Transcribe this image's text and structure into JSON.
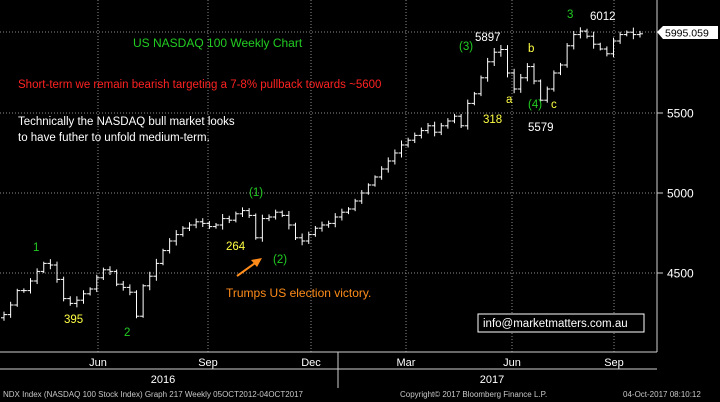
{
  "chart_data": {
    "type": "ohlc",
    "title": "US NASDAQ 100 Weekly Chart",
    "subtitle": "Short-term we remain bearish targeting a 7-8% pullback towards ~5600",
    "commentary": [
      "Technically the NASDAQ bull market looks",
      "to have futher to unfold medium-term."
    ],
    "last_price_label": "5995.059",
    "x_tick_labels": [
      "Jun",
      "Sep",
      "Dec",
      "Mar",
      "Jun",
      "Sep"
    ],
    "year_labels": [
      "2016",
      "2017"
    ],
    "y_ticks": [
      4500,
      5000,
      5500
    ],
    "ylim": [
      4100,
      6150
    ],
    "grid": true,
    "weekly_close": [
      4240,
      4300,
      4390,
      4390,
      4450,
      4510,
      4560,
      4550,
      4460,
      4340,
      4310,
      4330,
      4370,
      4400,
      4470,
      4520,
      4510,
      4430,
      4410,
      4380,
      4230,
      4420,
      4480,
      4560,
      4640,
      4700,
      4740,
      4780,
      4800,
      4820,
      4810,
      4790,
      4800,
      4840,
      4830,
      4870,
      4890,
      4860,
      4720,
      4840,
      4850,
      4880,
      4860,
      4800,
      4720,
      4700,
      4740,
      4780,
      4800,
      4810,
      4850,
      4880,
      4900,
      4950,
      5000,
      5050,
      5100,
      5150,
      5200,
      5250,
      5300,
      5330,
      5360,
      5390,
      5420,
      5380,
      5420,
      5450,
      5480,
      5420,
      5560,
      5620,
      5720,
      5820,
      5880,
      5897,
      5750,
      5650,
      5720,
      5790,
      5700,
      5580,
      5650,
      5750,
      5800,
      5920,
      5990,
      6012,
      5980,
      5930,
      5900,
      5870,
      5950,
      5990,
      6005,
      5990,
      5995
    ],
    "annotations": [
      {
        "text": "1",
        "color": "#22cc22"
      },
      {
        "text": "395",
        "color": "#ffff44"
      },
      {
        "text": "2",
        "color": "#22cc22"
      },
      {
        "text": "264",
        "color": "#ffff44"
      },
      {
        "text": "(1)",
        "color": "#22cc22"
      },
      {
        "text": "(2)",
        "color": "#22cc22"
      },
      {
        "text": "(3)",
        "color": "#22cc22"
      },
      {
        "text": "5897",
        "color": "#ffffff"
      },
      {
        "text": "a",
        "color": "#ffff44"
      },
      {
        "text": "b",
        "color": "#ffff44"
      },
      {
        "text": "318",
        "color": "#ffff44"
      },
      {
        "text": "(4)",
        "color": "#22cc22"
      },
      {
        "text": "c",
        "color": "#ffff44"
      },
      {
        "text": "5579",
        "color": "#ffffff"
      },
      {
        "text": "3",
        "color": "#22cc22"
      },
      {
        "text": "6012",
        "color": "#ffffff"
      }
    ],
    "event_label": "Trumps US election victory.",
    "colors": {
      "title": "#22cc22",
      "subtitle": "#ff2222",
      "commentary": "#ffffff",
      "event": "#ff8c1a",
      "bars": "#ffffff",
      "grid": "#8c8c8c"
    }
  },
  "watermark": "info@marketmatters.com.au",
  "footer": {
    "left": "NDX Index (NASDAQ 100 Stock Index) Graph 217  Weekly 05OCT2012-04OCT2017",
    "center": "Copyright© 2017 Bloomberg Finance L.P.",
    "right": "04-Oct-2017 08:10:12"
  }
}
